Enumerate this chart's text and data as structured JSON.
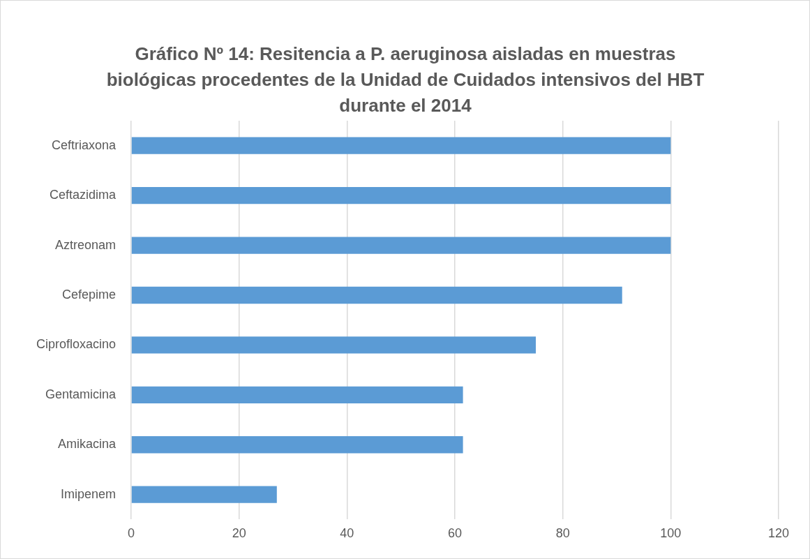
{
  "chart_data": {
    "type": "bar",
    "orientation": "horizontal",
    "title": "Gráfico Nº 14: Resitencia a P. aeruginosa aisladas en muestras biológicas procedentes de la Unidad de Cuidados intensivos del HBT durante el 2014",
    "categories": [
      "Ceftriaxona",
      "Ceftazidima",
      "Aztreonam",
      "Cefepime",
      "Ciprofloxacino",
      "Gentamicina",
      "Amikacina",
      "Imipenem"
    ],
    "values": [
      100,
      100,
      100,
      91,
      75,
      61.5,
      61.5,
      27
    ],
    "color": "#5b9bd5",
    "xlim": [
      0,
      120
    ],
    "xticks": [
      0,
      20,
      40,
      60,
      80,
      100,
      120
    ],
    "grid": "x"
  }
}
